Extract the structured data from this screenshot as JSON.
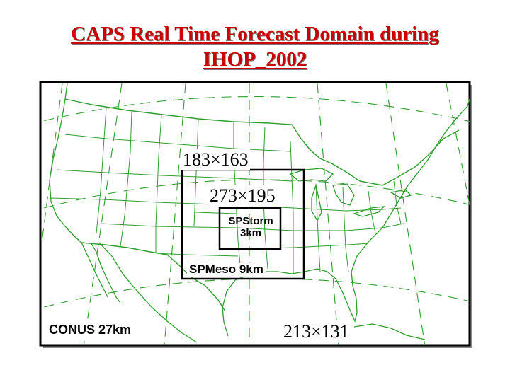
{
  "title": {
    "line1": "CAPS Real Time Forecast Domain during",
    "line2": "IHOP_2002"
  },
  "grids": {
    "spmeso_grid": "183×163",
    "spstorm_grid": "273×195",
    "conus_grid": "213×131"
  },
  "domains": {
    "spstorm_line1": "SPStorm",
    "spstorm_line2": "3km",
    "spmeso": "SPMeso 9km",
    "conus": "CONUS 27km"
  },
  "colors": {
    "title": "#cc0000",
    "map_lines": "#2e9e2e",
    "domain_boxes": "#000000"
  }
}
